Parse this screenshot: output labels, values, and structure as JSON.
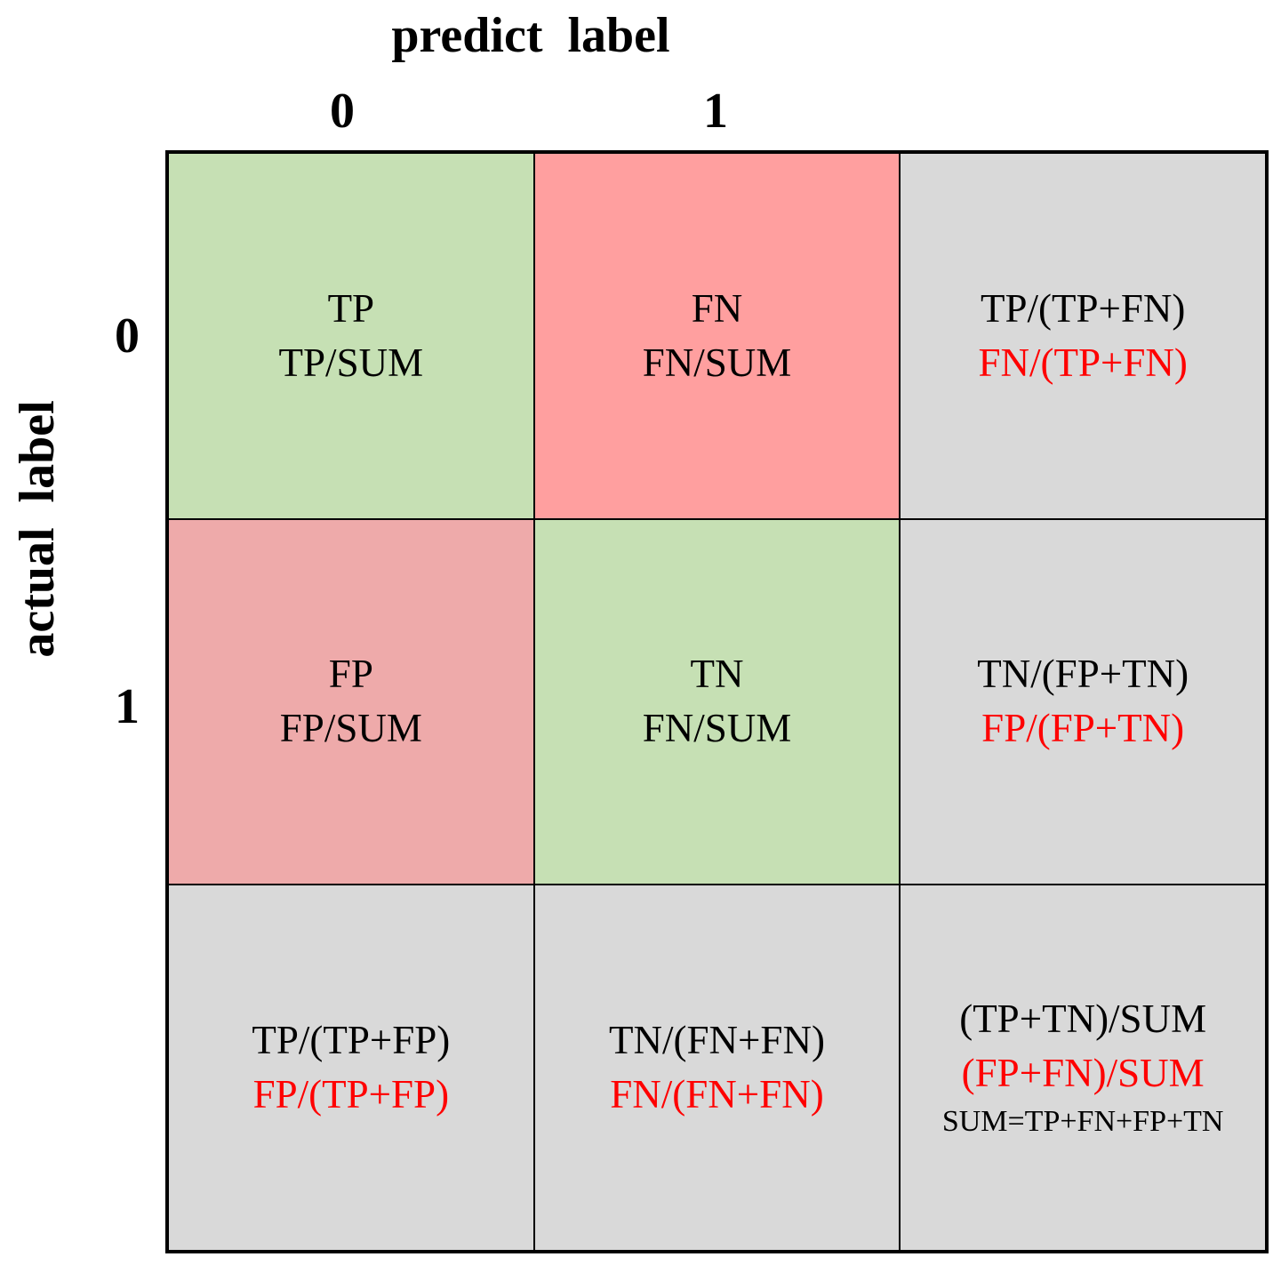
{
  "header": {
    "title": "predict  label",
    "columns": [
      "0",
      "1"
    ]
  },
  "side": {
    "title": "actual  label",
    "rows": [
      "0",
      "1"
    ]
  },
  "cells": [
    [
      {
        "fill": "#c6e0b4",
        "lines": [
          {
            "text": "TP",
            "color": "#000000"
          },
          {
            "text": "TP/SUM",
            "color": "#000000"
          }
        ]
      },
      {
        "fill": "#ff9f9f",
        "lines": [
          {
            "text": "FN",
            "color": "#000000"
          },
          {
            "text": "FN/SUM",
            "color": "#000000"
          }
        ]
      },
      {
        "fill": "#d9d9d9",
        "lines": [
          {
            "text": "TP/(TP+FN)",
            "color": "#000000"
          },
          {
            "text": "FN/(TP+FN)",
            "color": "#ff0000"
          }
        ]
      }
    ],
    [
      {
        "fill": "#eeaaaa",
        "lines": [
          {
            "text": "FP",
            "color": "#000000"
          },
          {
            "text": "FP/SUM",
            "color": "#000000"
          }
        ]
      },
      {
        "fill": "#c6e0b4",
        "lines": [
          {
            "text": "TN",
            "color": "#000000"
          },
          {
            "text": "FN/SUM",
            "color": "#000000"
          }
        ]
      },
      {
        "fill": "#d9d9d9",
        "lines": [
          {
            "text": "TN/(FP+TN)",
            "color": "#000000"
          },
          {
            "text": "FP/(FP+TN)",
            "color": "#ff0000"
          }
        ]
      }
    ],
    [
      {
        "fill": "#d9d9d9",
        "lines": [
          {
            "text": "TP/(TP+FP)",
            "color": "#000000"
          },
          {
            "text": "FP/(TP+FP)",
            "color": "#ff0000"
          }
        ]
      },
      {
        "fill": "#d9d9d9",
        "lines": [
          {
            "text": "TN/(FN+FN)",
            "color": "#000000"
          },
          {
            "text": "FN/(FN+FN)",
            "color": "#ff0000"
          }
        ]
      },
      {
        "fill": "#d9d9d9",
        "lines": [
          {
            "text": "(TP+TN)/SUM",
            "color": "#000000"
          },
          {
            "text": "(FP+FN)/SUM",
            "color": "#ff0000"
          }
        ],
        "note": "SUM=TP+FN+FP+TN"
      }
    ]
  ]
}
